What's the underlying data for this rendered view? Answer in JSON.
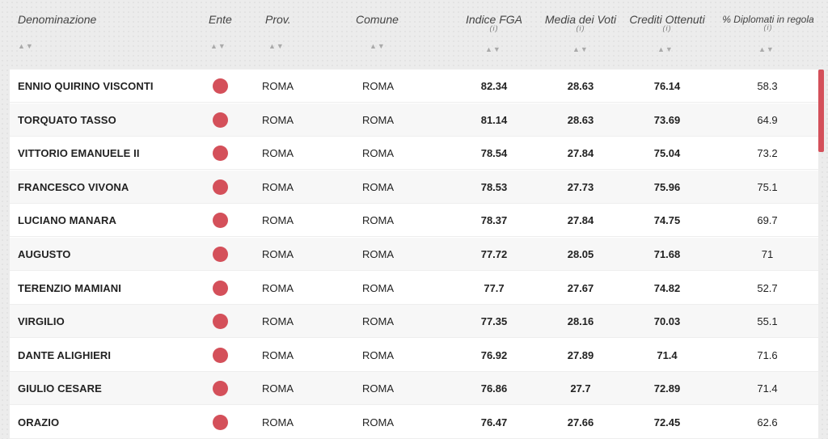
{
  "header": {
    "columns": [
      {
        "id": "denominazione",
        "label": "Denominazione",
        "info": ""
      },
      {
        "id": "ente",
        "label": "Ente",
        "info": ""
      },
      {
        "id": "prov",
        "label": "Prov.",
        "info": ""
      },
      {
        "id": "comune",
        "label": "Comune",
        "info": ""
      },
      {
        "id": "indice_fga",
        "label": "Indice FGA",
        "info": "(i)"
      },
      {
        "id": "media_voti",
        "label": "Media dei Voti",
        "info": "(i)"
      },
      {
        "id": "crediti",
        "label": "Crediti Ottenuti",
        "info": "(i)"
      },
      {
        "id": "diplomati",
        "label": "% Diplomati in regola",
        "info": "(i)"
      }
    ],
    "sort_glyph": "▲▼"
  },
  "colors": {
    "accent": "#d4505a"
  },
  "rows": [
    {
      "name": "ENNIO QUIRINO VISCONTI",
      "prov": "ROMA",
      "comune": "ROMA",
      "fga": "82.34",
      "media": "28.63",
      "crediti": "76.14",
      "diplomati": "58.3"
    },
    {
      "name": "TORQUATO TASSO",
      "prov": "ROMA",
      "comune": "ROMA",
      "fga": "81.14",
      "media": "28.63",
      "crediti": "73.69",
      "diplomati": "64.9"
    },
    {
      "name": "VITTORIO EMANUELE II",
      "prov": "ROMA",
      "comune": "ROMA",
      "fga": "78.54",
      "media": "27.84",
      "crediti": "75.04",
      "diplomati": "73.2"
    },
    {
      "name": "FRANCESCO VIVONA",
      "prov": "ROMA",
      "comune": "ROMA",
      "fga": "78.53",
      "media": "27.73",
      "crediti": "75.96",
      "diplomati": "75.1"
    },
    {
      "name": "LUCIANO MANARA",
      "prov": "ROMA",
      "comune": "ROMA",
      "fga": "78.37",
      "media": "27.84",
      "crediti": "74.75",
      "diplomati": "69.7"
    },
    {
      "name": "AUGUSTO",
      "prov": "ROMA",
      "comune": "ROMA",
      "fga": "77.72",
      "media": "28.05",
      "crediti": "71.68",
      "diplomati": "71"
    },
    {
      "name": "TERENZIO MAMIANI",
      "prov": "ROMA",
      "comune": "ROMA",
      "fga": "77.7",
      "media": "27.67",
      "crediti": "74.82",
      "diplomati": "52.7"
    },
    {
      "name": "VIRGILIO",
      "prov": "ROMA",
      "comune": "ROMA",
      "fga": "77.35",
      "media": "28.16",
      "crediti": "70.03",
      "diplomati": "55.1"
    },
    {
      "name": "DANTE ALIGHIERI",
      "prov": "ROMA",
      "comune": "ROMA",
      "fga": "76.92",
      "media": "27.89",
      "crediti": "71.4",
      "diplomati": "71.6"
    },
    {
      "name": "GIULIO CESARE",
      "prov": "ROMA",
      "comune": "ROMA",
      "fga": "76.86",
      "media": "27.7",
      "crediti": "72.89",
      "diplomati": "71.4"
    },
    {
      "name": "ORAZIO",
      "prov": "ROMA",
      "comune": "ROMA",
      "fga": "76.47",
      "media": "27.66",
      "crediti": "72.45",
      "diplomati": "62.6"
    }
  ]
}
